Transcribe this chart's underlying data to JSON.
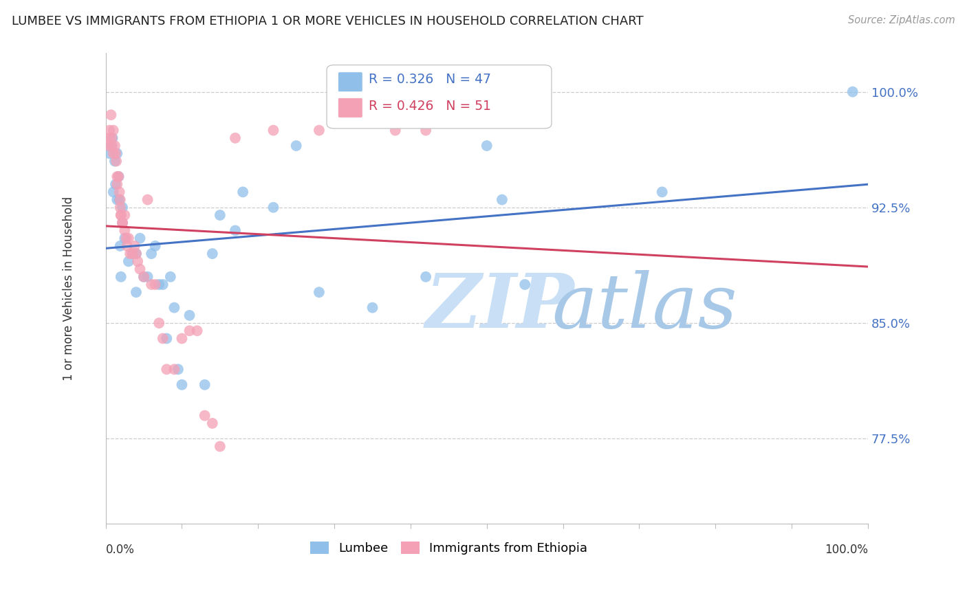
{
  "title": "LUMBEE VS IMMIGRANTS FROM ETHIOPIA 1 OR MORE VEHICLES IN HOUSEHOLD CORRELATION CHART",
  "source": "Source: ZipAtlas.com",
  "ylabel": "1 or more Vehicles in Household",
  "ytick_labels": [
    "77.5%",
    "85.0%",
    "92.5%",
    "100.0%"
  ],
  "ytick_values": [
    0.775,
    0.85,
    0.925,
    1.0
  ],
  "xlim": [
    0.0,
    1.0
  ],
  "ylim": [
    0.72,
    1.025
  ],
  "lumbee_R": 0.326,
  "lumbee_N": 47,
  "ethiopia_R": 0.426,
  "ethiopia_N": 51,
  "lumbee_color": "#90C0EA",
  "ethiopia_color": "#F4A0B5",
  "lumbee_line_color": "#4472C4",
  "ethiopia_line_color": "#D04060",
  "legend_lumbee": "Lumbee",
  "legend_ethiopia": "Immigrants from Ethiopia",
  "watermark_zip": "ZIP",
  "watermark_atlas": "atlas",
  "watermark_color": "#C8DFF5",
  "background_color": "#FFFFFF",
  "grid_color": "#CCCCCC",
  "lumbee_x": [
    0.005,
    0.008,
    0.009,
    0.01,
    0.012,
    0.013,
    0.015,
    0.015,
    0.017,
    0.018,
    0.019,
    0.02,
    0.022,
    0.022,
    0.025,
    0.03,
    0.035,
    0.04,
    0.04,
    0.045,
    0.05,
    0.055,
    0.06,
    0.065,
    0.07,
    0.075,
    0.08,
    0.085,
    0.09,
    0.095,
    0.1,
    0.11,
    0.13,
    0.14,
    0.15,
    0.17,
    0.18,
    0.22,
    0.25,
    0.28,
    0.35,
    0.42,
    0.5,
    0.52,
    0.55,
    0.73,
    0.98
  ],
  "lumbee_y": [
    0.96,
    0.965,
    0.97,
    0.935,
    0.955,
    0.94,
    0.96,
    0.93,
    0.945,
    0.93,
    0.9,
    0.88,
    0.925,
    0.915,
    0.905,
    0.89,
    0.895,
    0.895,
    0.87,
    0.905,
    0.88,
    0.88,
    0.895,
    0.9,
    0.875,
    0.875,
    0.84,
    0.88,
    0.86,
    0.82,
    0.81,
    0.855,
    0.81,
    0.895,
    0.92,
    0.91,
    0.935,
    0.925,
    0.965,
    0.87,
    0.86,
    0.88,
    0.965,
    0.93,
    0.875,
    0.935,
    1.0
  ],
  "ethiopia_x": [
    0.003,
    0.005,
    0.005,
    0.007,
    0.008,
    0.008,
    0.01,
    0.01,
    0.012,
    0.013,
    0.014,
    0.015,
    0.015,
    0.017,
    0.018,
    0.019,
    0.019,
    0.02,
    0.02,
    0.022,
    0.022,
    0.025,
    0.025,
    0.027,
    0.028,
    0.03,
    0.032,
    0.035,
    0.038,
    0.04,
    0.042,
    0.045,
    0.05,
    0.055,
    0.06,
    0.065,
    0.07,
    0.075,
    0.08,
    0.09,
    0.1,
    0.11,
    0.12,
    0.13,
    0.14,
    0.15,
    0.17,
    0.22,
    0.28,
    0.38,
    0.42
  ],
  "ethiopia_y": [
    0.965,
    0.975,
    0.97,
    0.985,
    0.97,
    0.965,
    0.975,
    0.96,
    0.965,
    0.96,
    0.955,
    0.945,
    0.94,
    0.945,
    0.935,
    0.93,
    0.925,
    0.92,
    0.92,
    0.915,
    0.915,
    0.92,
    0.91,
    0.905,
    0.9,
    0.905,
    0.895,
    0.895,
    0.9,
    0.895,
    0.89,
    0.885,
    0.88,
    0.93,
    0.875,
    0.875,
    0.85,
    0.84,
    0.82,
    0.82,
    0.84,
    0.845,
    0.845,
    0.79,
    0.785,
    0.77,
    0.97,
    0.975,
    0.975,
    0.975,
    0.975
  ]
}
